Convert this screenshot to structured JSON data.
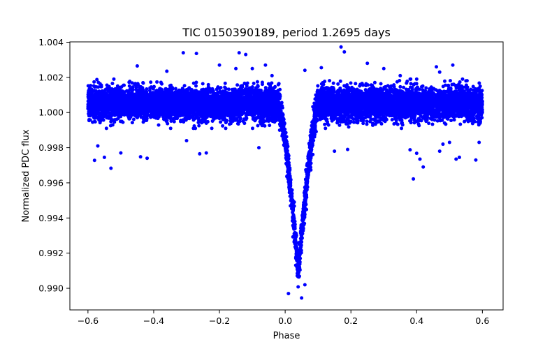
{
  "chart_data": {
    "type": "scatter",
    "title": "TIC 0150390189, period 1.2695 days",
    "xlabel": "Phase",
    "ylabel": "Normalized PDC flux",
    "xlim": [
      -0.655,
      0.663
    ],
    "ylim": [
      0.98877,
      1.00402
    ],
    "xticks": [
      -0.6,
      -0.4,
      -0.2,
      0.0,
      0.2,
      0.4,
      0.6
    ],
    "xtick_labels": [
      "−0.6",
      "−0.4",
      "−0.2",
      "0.0",
      "0.2",
      "0.4",
      "0.6"
    ],
    "yticks": [
      0.99,
      0.992,
      0.994,
      0.996,
      0.998,
      1.0,
      1.002,
      1.004
    ],
    "ytick_labels": [
      "0.990",
      "0.992",
      "0.994",
      "0.996",
      "0.998",
      "1.000",
      "1.002",
      "1.004"
    ],
    "grid": false,
    "marker_color": "#0000ff",
    "x_range": [
      -0.6,
      0.6
    ],
    "baseline_flux": 1.0005,
    "baseline_scatter": 0.00045,
    "transit": {
      "center_phase": 0.04,
      "half_width": 0.06,
      "depth": 0.0095
    },
    "points": [
      [
        -0.58,
        0.99728
      ],
      [
        -0.55,
        0.99745
      ],
      [
        -0.53,
        0.99683
      ],
      [
        -0.57,
        0.9981
      ],
      [
        -0.5,
        0.9977
      ],
      [
        -0.45,
        1.00265
      ],
      [
        -0.44,
        0.99748
      ],
      [
        -0.42,
        0.9974
      ],
      [
        -0.36,
        1.00235
      ],
      [
        -0.31,
        1.0034
      ],
      [
        -0.3,
        0.9984
      ],
      [
        -0.27,
        1.00336
      ],
      [
        -0.26,
        0.99765
      ],
      [
        -0.24,
        0.9977
      ],
      [
        -0.2,
        1.0027
      ],
      [
        -0.15,
        1.0025
      ],
      [
        -0.14,
        1.0034
      ],
      [
        -0.12,
        1.0033
      ],
      [
        -0.1,
        1.0025
      ],
      [
        -0.08,
        0.998
      ],
      [
        -0.06,
        1.0027
      ],
      [
        -0.04,
        1.0021
      ],
      [
        0.06,
        1.0024
      ],
      [
        0.11,
        1.00255
      ],
      [
        0.15,
        0.9978
      ],
      [
        0.17,
        1.00373
      ],
      [
        0.18,
        1.00345
      ],
      [
        0.19,
        0.9979
      ],
      [
        0.25,
        1.0028
      ],
      [
        0.3,
        1.0025
      ],
      [
        0.35,
        1.0021
      ],
      [
        0.4,
        0.99768
      ],
      [
        0.46,
        1.0026
      ],
      [
        0.41,
        0.99735
      ],
      [
        0.38,
        0.99788
      ],
      [
        0.39,
        0.99622
      ],
      [
        0.47,
        1.0023
      ],
      [
        0.47,
        0.9978
      ],
      [
        0.5,
        0.9983
      ],
      [
        0.51,
        1.0027
      ],
      [
        0.53,
        0.99745
      ],
      [
        0.55,
        1.0018
      ],
      [
        0.58,
        0.9973
      ],
      [
        0.59,
        0.9983
      ],
      [
        0.52,
        0.99735
      ],
      [
        0.42,
        0.9969
      ],
      [
        0.48,
        0.9982
      ],
      [
        0.01,
        0.9897
      ],
      [
        0.05,
        0.98945
      ],
      [
        0.06,
        0.9902
      ]
    ]
  }
}
